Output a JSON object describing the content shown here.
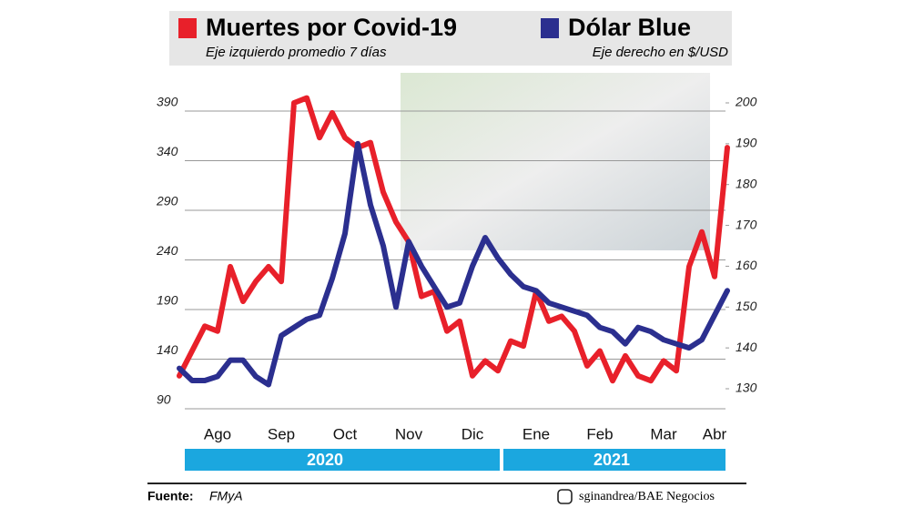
{
  "chart_data": {
    "type": "line",
    "categories": [
      null,
      null,
      null,
      "Ago",
      null,
      null,
      null,
      null,
      "Sep",
      null,
      null,
      null,
      null,
      "Oct",
      null,
      null,
      null,
      null,
      "Nov",
      null,
      null,
      null,
      null,
      "Dic",
      null,
      null,
      null,
      null,
      "Ene",
      null,
      null,
      null,
      null,
      "Feb",
      null,
      null,
      null,
      null,
      "Mar",
      null,
      null,
      null,
      "Abr",
      null
    ],
    "series": [
      {
        "name": "Muertes por Covid-19",
        "note": "Eje izquierdo promedio 7 días",
        "color": "#e8202a",
        "axis": "y",
        "values": [
          115,
          140,
          165,
          160,
          225,
          190,
          210,
          225,
          210,
          390,
          395,
          355,
          380,
          355,
          345,
          350,
          300,
          270,
          250,
          195,
          200,
          160,
          170,
          115,
          130,
          120,
          150,
          145,
          200,
          170,
          175,
          160,
          125,
          140,
          110,
          135,
          115,
          110,
          130,
          120,
          225,
          260,
          215,
          345
        ]
      },
      {
        "name": "Dólar Blue",
        "note": "Eje derecho en $/USD",
        "color": "#2b2f8f",
        "axis": "y2",
        "values": [
          135,
          132,
          132,
          133,
          137,
          137,
          133,
          131,
          143,
          145,
          147,
          148,
          157,
          168,
          190,
          175,
          165,
          150,
          166,
          160,
          155,
          150,
          151,
          160,
          167,
          162,
          158,
          155,
          154,
          151,
          150,
          149,
          148,
          145,
          144,
          141,
          145,
          144,
          142,
          141,
          140,
          142,
          148,
          154
        ]
      }
    ],
    "ylim": [
      90,
      390
    ],
    "yticks": [
      90,
      140,
      190,
      240,
      290,
      340,
      390
    ],
    "y2lim": [
      127.1,
      200
    ],
    "y2ticks": [
      130,
      140,
      150,
      160,
      170,
      180,
      190,
      200
    ],
    "grid": true,
    "periods": [
      "2020",
      "2021"
    ],
    "source_label": "Fuente:",
    "source": "FMyA",
    "credit": "sginandrea/BAE Negocios"
  }
}
